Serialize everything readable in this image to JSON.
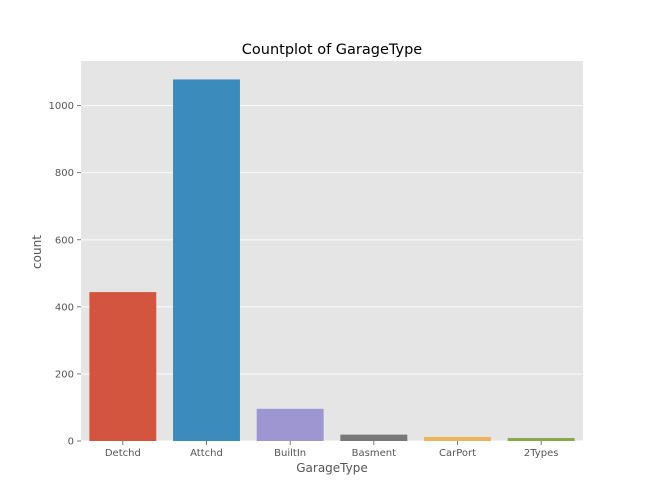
{
  "chart_data": {
    "type": "bar",
    "title": "Countplot of GarageType",
    "xlabel": "GarageType",
    "ylabel": "count",
    "categories": [
      "Detchd",
      "Attchd",
      "BuiltIn",
      "Basment",
      "CarPort",
      "2Types"
    ],
    "values": [
      444,
      1078,
      96,
      19,
      12,
      9
    ],
    "ylim": [
      0,
      1133
    ],
    "yticks": [
      0,
      200,
      400,
      600,
      800,
      1000
    ],
    "grid": true,
    "colors": {
      "plot_background": "#e5e5e5",
      "grid": "#ffffff",
      "bars": [
        "#d3553f",
        "#3b8bbd",
        "#9e96d0",
        "#787878",
        "#e9b55f",
        "#87a84c"
      ],
      "text": "#000000",
      "tick_text": "#555555"
    }
  }
}
